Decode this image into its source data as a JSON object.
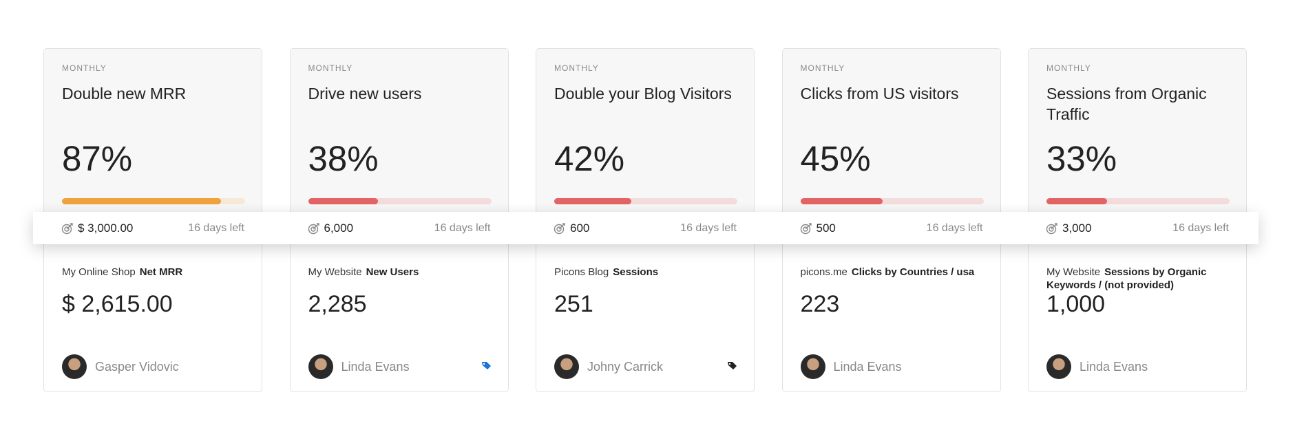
{
  "goals": [
    {
      "period": "MONTHLY",
      "title": "Double new MRR",
      "percent": "87%",
      "progress": 0.87,
      "bar_color": "#f0a23c",
      "bar_track": "#f6ead6",
      "target": "$ 3,000.00",
      "days_left": "16 days left",
      "source": "My Online Shop",
      "metric": "Net MRR",
      "value": "$ 2,615.00",
      "owner": "Gasper Vidovic",
      "tag": null
    },
    {
      "period": "MONTHLY",
      "title": "Drive new users",
      "percent": "38%",
      "progress": 0.38,
      "bar_color": "#e26464",
      "bar_track": "#f4dcdc",
      "target": "6,000",
      "days_left": "16 days left",
      "source": "My Website",
      "metric": "New Users",
      "value": "2,285",
      "owner": "Linda Evans",
      "tag": "#1e73d8"
    },
    {
      "period": "MONTHLY",
      "title": "Double your Blog Visitors",
      "percent": "42%",
      "progress": 0.42,
      "bar_color": "#e26464",
      "bar_track": "#f4dcdc",
      "target": "600",
      "days_left": "16 days left",
      "source": "Picons Blog",
      "metric": "Sessions",
      "value": "251",
      "owner": "Johny Carrick",
      "tag": "#222222"
    },
    {
      "period": "MONTHLY",
      "title": "Clicks from US visitors",
      "percent": "45%",
      "progress": 0.45,
      "bar_color": "#e26464",
      "bar_track": "#f4dcdc",
      "target": "500",
      "days_left": "16 days left",
      "source": "picons.me",
      "metric": "Clicks by Countries / usa",
      "value": "223",
      "owner": "Linda Evans",
      "tag": null
    },
    {
      "period": "MONTHLY",
      "title": "Sessions from Organic Traffic",
      "percent": "33%",
      "progress": 0.33,
      "bar_color": "#e26464",
      "bar_track": "#f4dcdc",
      "target": "3,000",
      "days_left": "16 days left",
      "source": "My Website",
      "metric": "Sessions by Organic Keywords / (not provided)",
      "value": "1,000",
      "owner": "Linda Evans",
      "tag": null
    }
  ]
}
